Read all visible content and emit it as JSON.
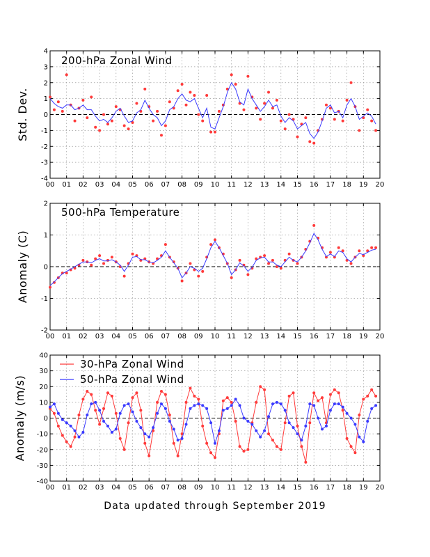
{
  "chart_data": [
    {
      "type": "scatter",
      "title": "200-hPa Zonal Wind",
      "ylabel": "Std. Dev.",
      "xlabel": "",
      "xlim": [
        0,
        20
      ],
      "ylim": [
        -4,
        4
      ],
      "yticks": [
        -4,
        -3,
        -2,
        -1,
        0,
        1,
        2,
        3,
        4
      ],
      "xtick_labels": [
        "00",
        "01",
        "02",
        "03",
        "04",
        "05",
        "06",
        "07",
        "08",
        "09",
        "10",
        "11",
        "12",
        "13",
        "14",
        "15",
        "16",
        "17",
        "18",
        "19",
        "20"
      ],
      "grid": true,
      "zero_line": "dashed",
      "series": [
        {
          "role": "monthly points",
          "color": "#ff3a3a",
          "x": [
            0.0,
            0.25,
            0.5,
            0.75,
            1.0,
            1.25,
            1.5,
            1.75,
            2.0,
            2.25,
            2.5,
            2.75,
            3.0,
            3.25,
            3.5,
            3.75,
            4.0,
            4.25,
            4.5,
            4.75,
            5.0,
            5.25,
            5.5,
            5.75,
            6.0,
            6.25,
            6.5,
            6.75,
            7.0,
            7.25,
            7.5,
            7.75,
            8.0,
            8.25,
            8.5,
            8.75,
            9.0,
            9.25,
            9.5,
            9.75,
            10.0,
            10.25,
            10.5,
            10.75,
            11.0,
            11.25,
            11.5,
            11.75,
            12.0,
            12.25,
            12.5,
            12.75,
            13.0,
            13.25,
            13.5,
            13.75,
            14.0,
            14.25,
            14.5,
            14.75,
            15.0,
            15.25,
            15.5,
            15.75,
            16.0,
            16.25,
            16.5,
            16.75,
            17.0,
            17.25,
            17.5,
            17.75,
            18.0,
            18.25,
            18.5,
            18.75,
            19.0,
            19.25,
            19.5,
            19.75
          ],
          "y": [
            1.1,
            0.3,
            0.8,
            0.2,
            2.5,
            0.6,
            -0.4,
            0.4,
            0.9,
            -0.2,
            1.1,
            -0.8,
            -1.0,
            0.0,
            -0.6,
            -0.4,
            0.5,
            0.3,
            -0.7,
            -0.9,
            -0.5,
            0.7,
            0.2,
            1.6,
            0.5,
            -0.4,
            0.2,
            -1.3,
            -0.7,
            0.8,
            0.4,
            1.5,
            1.9,
            0.6,
            1.4,
            1.2,
            0.0,
            -0.4,
            1.2,
            -1.1,
            -1.1,
            0.2,
            0.6,
            1.6,
            2.5,
            1.9,
            0.7,
            0.3,
            2.4,
            1.1,
            0.4,
            -0.3,
            0.7,
            1.4,
            0.4,
            0.9,
            -0.4,
            -0.9,
            0.0,
            -0.3,
            -1.4,
            -0.6,
            -0.2,
            -1.7,
            -1.8,
            -1.0,
            -0.3,
            0.6,
            0.4,
            -0.3,
            0.2,
            -0.4,
            0.9,
            2.0,
            0.5,
            -1.0,
            -0.2,
            0.3,
            -0.4,
            -1.0
          ]
        },
        {
          "role": "smoothed curve",
          "color": "#3a3aff",
          "x": [
            0.0,
            0.25,
            0.5,
            0.75,
            1.0,
            1.25,
            1.5,
            1.75,
            2.0,
            2.25,
            2.5,
            2.75,
            3.0,
            3.25,
            3.5,
            3.75,
            4.0,
            4.25,
            4.5,
            4.75,
            5.0,
            5.25,
            5.5,
            5.75,
            6.0,
            6.25,
            6.5,
            6.75,
            7.0,
            7.25,
            7.5,
            7.75,
            8.0,
            8.25,
            8.5,
            8.75,
            9.0,
            9.25,
            9.5,
            9.75,
            10.0,
            10.25,
            10.5,
            10.75,
            11.0,
            11.25,
            11.5,
            11.75,
            12.0,
            12.25,
            12.5,
            12.75,
            13.0,
            13.25,
            13.5,
            13.75,
            14.0,
            14.25,
            14.5,
            14.75,
            15.0,
            15.25,
            15.5,
            15.75,
            16.0,
            16.25,
            16.5,
            16.75,
            17.0,
            17.25,
            17.5,
            17.75,
            18.0,
            18.25,
            18.5,
            18.75,
            19.0,
            19.25,
            19.5,
            19.75
          ],
          "y": [
            1.0,
            0.7,
            0.5,
            0.4,
            0.6,
            0.6,
            0.3,
            0.4,
            0.6,
            0.3,
            0.3,
            -0.1,
            -0.4,
            -0.3,
            -0.5,
            -0.2,
            0.2,
            0.4,
            -0.1,
            -0.5,
            -0.4,
            0.1,
            0.3,
            0.9,
            0.4,
            0.0,
            -0.2,
            -0.7,
            -0.4,
            0.3,
            0.5,
            1.0,
            1.3,
            0.9,
            0.8,
            1.0,
            0.4,
            -0.2,
            0.4,
            -0.8,
            -0.9,
            -0.2,
            0.5,
            1.4,
            2.0,
            1.6,
            0.8,
            0.6,
            1.6,
            1.0,
            0.6,
            0.2,
            0.5,
            0.9,
            0.5,
            0.6,
            -0.1,
            -0.5,
            -0.2,
            -0.4,
            -0.9,
            -0.7,
            -0.5,
            -1.2,
            -1.5,
            -1.1,
            -0.4,
            0.4,
            0.6,
            0.1,
            0.2,
            -0.2,
            0.6,
            1.0,
            0.5,
            -0.3,
            -0.1,
            0.1,
            -0.1,
            -0.6
          ]
        }
      ]
    },
    {
      "type": "scatter",
      "title": "500-hPa Temperature",
      "ylabel": "Anomaly (C)",
      "xlabel": "",
      "xlim": [
        0,
        20
      ],
      "ylim": [
        -2,
        2
      ],
      "yticks": [
        -2,
        -1,
        0,
        1,
        2
      ],
      "xtick_labels": [
        "00",
        "01",
        "02",
        "03",
        "04",
        "05",
        "06",
        "07",
        "08",
        "09",
        "10",
        "11",
        "12",
        "13",
        "14",
        "15",
        "16",
        "17",
        "18",
        "19",
        "20"
      ],
      "grid": true,
      "zero_line": "dashed",
      "series": [
        {
          "role": "monthly points",
          "color": "#ff3a3a",
          "x": [
            0.0,
            0.25,
            0.5,
            0.75,
            1.0,
            1.25,
            1.5,
            1.75,
            2.0,
            2.25,
            2.5,
            2.75,
            3.0,
            3.25,
            3.5,
            3.75,
            4.0,
            4.25,
            4.5,
            4.75,
            5.0,
            5.25,
            5.5,
            5.75,
            6.0,
            6.25,
            6.5,
            6.75,
            7.0,
            7.25,
            7.5,
            7.75,
            8.0,
            8.25,
            8.5,
            8.75,
            9.0,
            9.25,
            9.5,
            9.75,
            10.0,
            10.25,
            10.5,
            10.75,
            11.0,
            11.25,
            11.5,
            11.75,
            12.0,
            12.25,
            12.5,
            12.75,
            13.0,
            13.25,
            13.5,
            13.75,
            14.0,
            14.25,
            14.5,
            14.75,
            15.0,
            15.25,
            15.5,
            15.75,
            16.0,
            16.25,
            16.5,
            16.75,
            17.0,
            17.25,
            17.5,
            17.75,
            18.0,
            18.25,
            18.5,
            18.75,
            19.0,
            19.25,
            19.5,
            19.75
          ],
          "y": [
            -0.65,
            -0.5,
            -0.35,
            -0.2,
            -0.2,
            -0.1,
            -0.05,
            0.05,
            0.2,
            0.15,
            0.05,
            0.25,
            0.35,
            0.1,
            0.2,
            0.3,
            0.15,
            0.0,
            -0.3,
            0.1,
            0.4,
            0.35,
            0.2,
            0.25,
            0.15,
            0.1,
            0.25,
            0.35,
            0.7,
            0.3,
            0.15,
            -0.05,
            -0.45,
            -0.2,
            0.1,
            -0.1,
            -0.3,
            -0.15,
            0.3,
            0.7,
            0.85,
            0.6,
            0.4,
            0.1,
            -0.35,
            -0.1,
            0.2,
            0.05,
            -0.25,
            -0.05,
            0.25,
            0.3,
            0.35,
            0.1,
            0.2,
            0.0,
            -0.05,
            0.2,
            0.4,
            0.2,
            0.1,
            0.3,
            0.55,
            0.8,
            1.3,
            0.9,
            0.6,
            0.3,
            0.45,
            0.3,
            0.6,
            0.5,
            0.2,
            0.1,
            0.3,
            0.5,
            0.35,
            0.5,
            0.6,
            0.6
          ]
        },
        {
          "role": "smoothed curve",
          "color": "#3a3aff",
          "x": [
            0.0,
            0.25,
            0.5,
            0.75,
            1.0,
            1.25,
            1.5,
            1.75,
            2.0,
            2.25,
            2.5,
            2.75,
            3.0,
            3.25,
            3.5,
            3.75,
            4.0,
            4.25,
            4.5,
            4.75,
            5.0,
            5.25,
            5.5,
            5.75,
            6.0,
            6.25,
            6.5,
            6.75,
            7.0,
            7.25,
            7.5,
            7.75,
            8.0,
            8.25,
            8.5,
            8.75,
            9.0,
            9.25,
            9.5,
            9.75,
            10.0,
            10.25,
            10.5,
            10.75,
            11.0,
            11.25,
            11.5,
            11.75,
            12.0,
            12.25,
            12.5,
            12.75,
            13.0,
            13.25,
            13.5,
            13.75,
            14.0,
            14.25,
            14.5,
            14.75,
            15.0,
            15.25,
            15.5,
            15.75,
            16.0,
            16.25,
            16.5,
            16.75,
            17.0,
            17.25,
            17.5,
            17.75,
            18.0,
            18.25,
            18.5,
            18.75,
            19.0,
            19.25,
            19.5,
            19.75
          ],
          "y": [
            -0.6,
            -0.48,
            -0.35,
            -0.22,
            -0.15,
            -0.08,
            0.0,
            0.08,
            0.15,
            0.15,
            0.12,
            0.2,
            0.25,
            0.18,
            0.18,
            0.22,
            0.15,
            0.05,
            -0.15,
            0.05,
            0.3,
            0.32,
            0.22,
            0.22,
            0.15,
            0.12,
            0.2,
            0.3,
            0.5,
            0.3,
            0.12,
            -0.05,
            -0.35,
            -0.2,
            0.0,
            -0.05,
            -0.15,
            -0.05,
            0.25,
            0.6,
            0.8,
            0.6,
            0.35,
            0.1,
            -0.25,
            -0.1,
            0.12,
            0.02,
            -0.15,
            -0.02,
            0.2,
            0.28,
            0.3,
            0.15,
            0.15,
            0.05,
            0.0,
            0.15,
            0.3,
            0.2,
            0.15,
            0.3,
            0.5,
            0.75,
            1.05,
            0.85,
            0.55,
            0.32,
            0.4,
            0.32,
            0.5,
            0.45,
            0.25,
            0.15,
            0.3,
            0.42,
            0.38,
            0.45,
            0.52,
            0.55
          ]
        }
      ]
    },
    {
      "type": "line",
      "title": "",
      "ylabel": "Anomaly (m/s)",
      "xlabel": "",
      "xlim": [
        0,
        20
      ],
      "ylim": [
        -40,
        40
      ],
      "yticks": [
        -40,
        -30,
        -20,
        -10,
        0,
        10,
        20,
        30,
        40
      ],
      "xtick_labels": [
        "00",
        "01",
        "02",
        "03",
        "04",
        "05",
        "06",
        "07",
        "08",
        "09",
        "10",
        "11",
        "12",
        "13",
        "14",
        "15",
        "16",
        "17",
        "18",
        "19",
        "20"
      ],
      "grid": true,
      "zero_line": "dashed",
      "legend": "top-left",
      "series": [
        {
          "name": "30-hPa Zonal Wind",
          "color": "#ff3a3a",
          "x": [
            0.0,
            0.25,
            0.5,
            0.75,
            1.0,
            1.25,
            1.5,
            1.75,
            2.0,
            2.25,
            2.5,
            2.75,
            3.0,
            3.25,
            3.5,
            3.75,
            4.0,
            4.25,
            4.5,
            4.75,
            5.0,
            5.25,
            5.5,
            5.75,
            6.0,
            6.25,
            6.5,
            6.75,
            7.0,
            7.25,
            7.5,
            7.75,
            8.0,
            8.25,
            8.5,
            8.75,
            9.0,
            9.25,
            9.5,
            9.75,
            10.0,
            10.25,
            10.5,
            10.75,
            11.0,
            11.25,
            11.5,
            11.75,
            12.0,
            12.25,
            12.5,
            12.75,
            13.0,
            13.25,
            13.5,
            13.75,
            14.0,
            14.25,
            14.5,
            14.75,
            15.0,
            15.25,
            15.5,
            15.75,
            16.0,
            16.25,
            16.5,
            16.75,
            17.0,
            17.25,
            17.5,
            17.75,
            18.0,
            18.25,
            18.5,
            18.75,
            19.0,
            19.25,
            19.5,
            19.75
          ],
          "y": [
            6,
            3,
            -5,
            -11,
            -15,
            -18,
            -12,
            2,
            12,
            17,
            15,
            5,
            -4,
            6,
            16,
            14,
            3,
            -13,
            -20,
            -3,
            13,
            16,
            5,
            -16,
            -24,
            -8,
            10,
            17,
            15,
            2,
            -16,
            -24,
            -10,
            10,
            19,
            14,
            12,
            -5,
            -16,
            -22,
            -25,
            -10,
            11,
            13,
            10,
            -2,
            -18,
            -21,
            -20,
            -3,
            10,
            20,
            18,
            -10,
            -14,
            -18,
            -20,
            -3,
            14,
            16,
            -5,
            -18,
            -28,
            -3,
            16,
            11,
            13,
            -3,
            15,
            18,
            16,
            5,
            -13,
            -18,
            -22,
            2,
            12,
            14,
            18,
            14
          ]
        },
        {
          "name": "50-hPa Zonal Wind",
          "color": "#3a3aff",
          "x": [
            0.0,
            0.25,
            0.5,
            0.75,
            1.0,
            1.25,
            1.5,
            1.75,
            2.0,
            2.25,
            2.5,
            2.75,
            3.0,
            3.25,
            3.5,
            3.75,
            4.0,
            4.25,
            4.5,
            4.75,
            5.0,
            5.25,
            5.5,
            5.75,
            6.0,
            6.25,
            6.5,
            6.75,
            7.0,
            7.25,
            7.5,
            7.75,
            8.0,
            8.25,
            8.5,
            8.75,
            9.0,
            9.25,
            9.5,
            9.75,
            10.0,
            10.25,
            10.5,
            10.75,
            11.0,
            11.25,
            11.5,
            11.75,
            12.0,
            12.25,
            12.5,
            12.75,
            13.0,
            13.25,
            13.5,
            13.75,
            14.0,
            14.25,
            14.5,
            14.75,
            15.0,
            15.25,
            15.5,
            15.75,
            16.0,
            16.25,
            16.5,
            16.75,
            17.0,
            17.25,
            17.5,
            17.75,
            18.0,
            18.25,
            18.5,
            18.75,
            19.0,
            19.25,
            19.5,
            19.75
          ],
          "y": [
            7,
            9,
            3,
            -1,
            -3,
            -5,
            -8,
            -12,
            -9,
            2,
            9,
            10,
            5,
            -2,
            -5,
            -9,
            -7,
            3,
            8,
            9,
            4,
            -2,
            -6,
            -10,
            -12,
            -6,
            3,
            9,
            6,
            -2,
            -7,
            -14,
            -13,
            -4,
            6,
            8,
            9,
            8,
            6,
            -3,
            -16,
            -8,
            5,
            6,
            8,
            12,
            8,
            0,
            -2,
            -4,
            -8,
            -12,
            -8,
            1,
            9,
            10,
            9,
            5,
            -3,
            -6,
            -10,
            -14,
            -5,
            9,
            8,
            0,
            -7,
            -5,
            5,
            9,
            9,
            7,
            3,
            0,
            -4,
            -12,
            -15,
            -2,
            6,
            8
          ]
        }
      ]
    }
  ],
  "footer": "Data updated through September 2019"
}
